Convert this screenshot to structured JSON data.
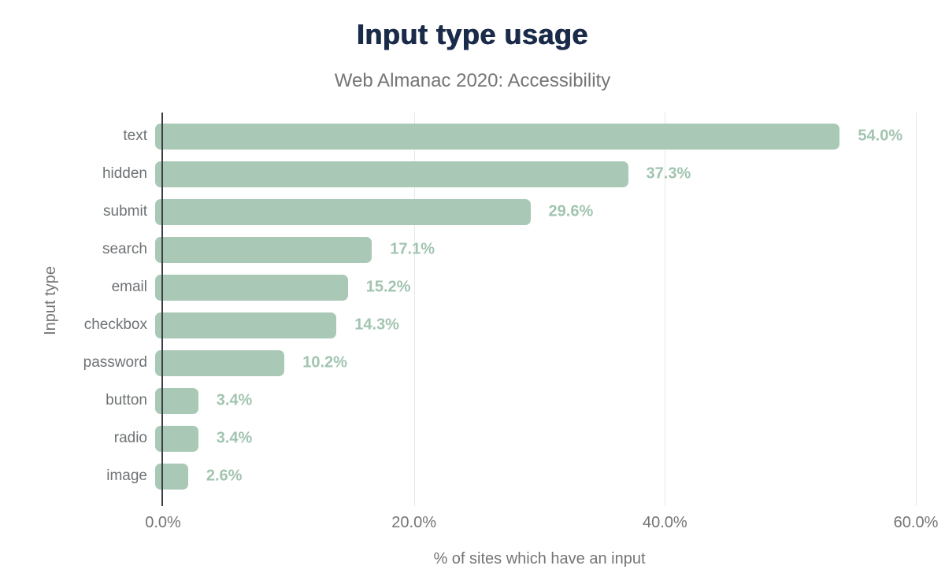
{
  "title": "Input type usage",
  "subtitle": "Web Almanac 2020: Accessibility",
  "chart_data": {
    "type": "bar",
    "orientation": "horizontal",
    "title": "Input type usage",
    "subtitle": "Web Almanac 2020: Accessibility",
    "xlabel": "% of sites which have an input",
    "ylabel": "Input type",
    "categories": [
      "text",
      "hidden",
      "submit",
      "search",
      "email",
      "checkbox",
      "password",
      "button",
      "radio",
      "image"
    ],
    "values": [
      54.0,
      37.3,
      29.6,
      17.1,
      15.2,
      14.3,
      10.2,
      3.4,
      3.4,
      2.6
    ],
    "value_labels": [
      "54.0%",
      "37.3%",
      "29.6%",
      "17.1%",
      "15.2%",
      "14.3%",
      "10.2%",
      "3.4%",
      "3.4%",
      "2.6%"
    ],
    "xlim": [
      0,
      60
    ],
    "x_ticks": [
      {
        "value": 0,
        "label": "0.0%"
      },
      {
        "value": 20,
        "label": "20.0%"
      },
      {
        "value": 40,
        "label": "40.0%"
      },
      {
        "value": 60,
        "label": "60.0%"
      }
    ],
    "grid": true,
    "legend": false
  },
  "colors": {
    "background": "#ffffff",
    "bar": "#a9c8b6",
    "value_label": "#a2c4b0",
    "title": "#1a2b49",
    "muted_text": "#757575",
    "axis_line": "#393f44",
    "gridline": "#e7e7e7"
  }
}
